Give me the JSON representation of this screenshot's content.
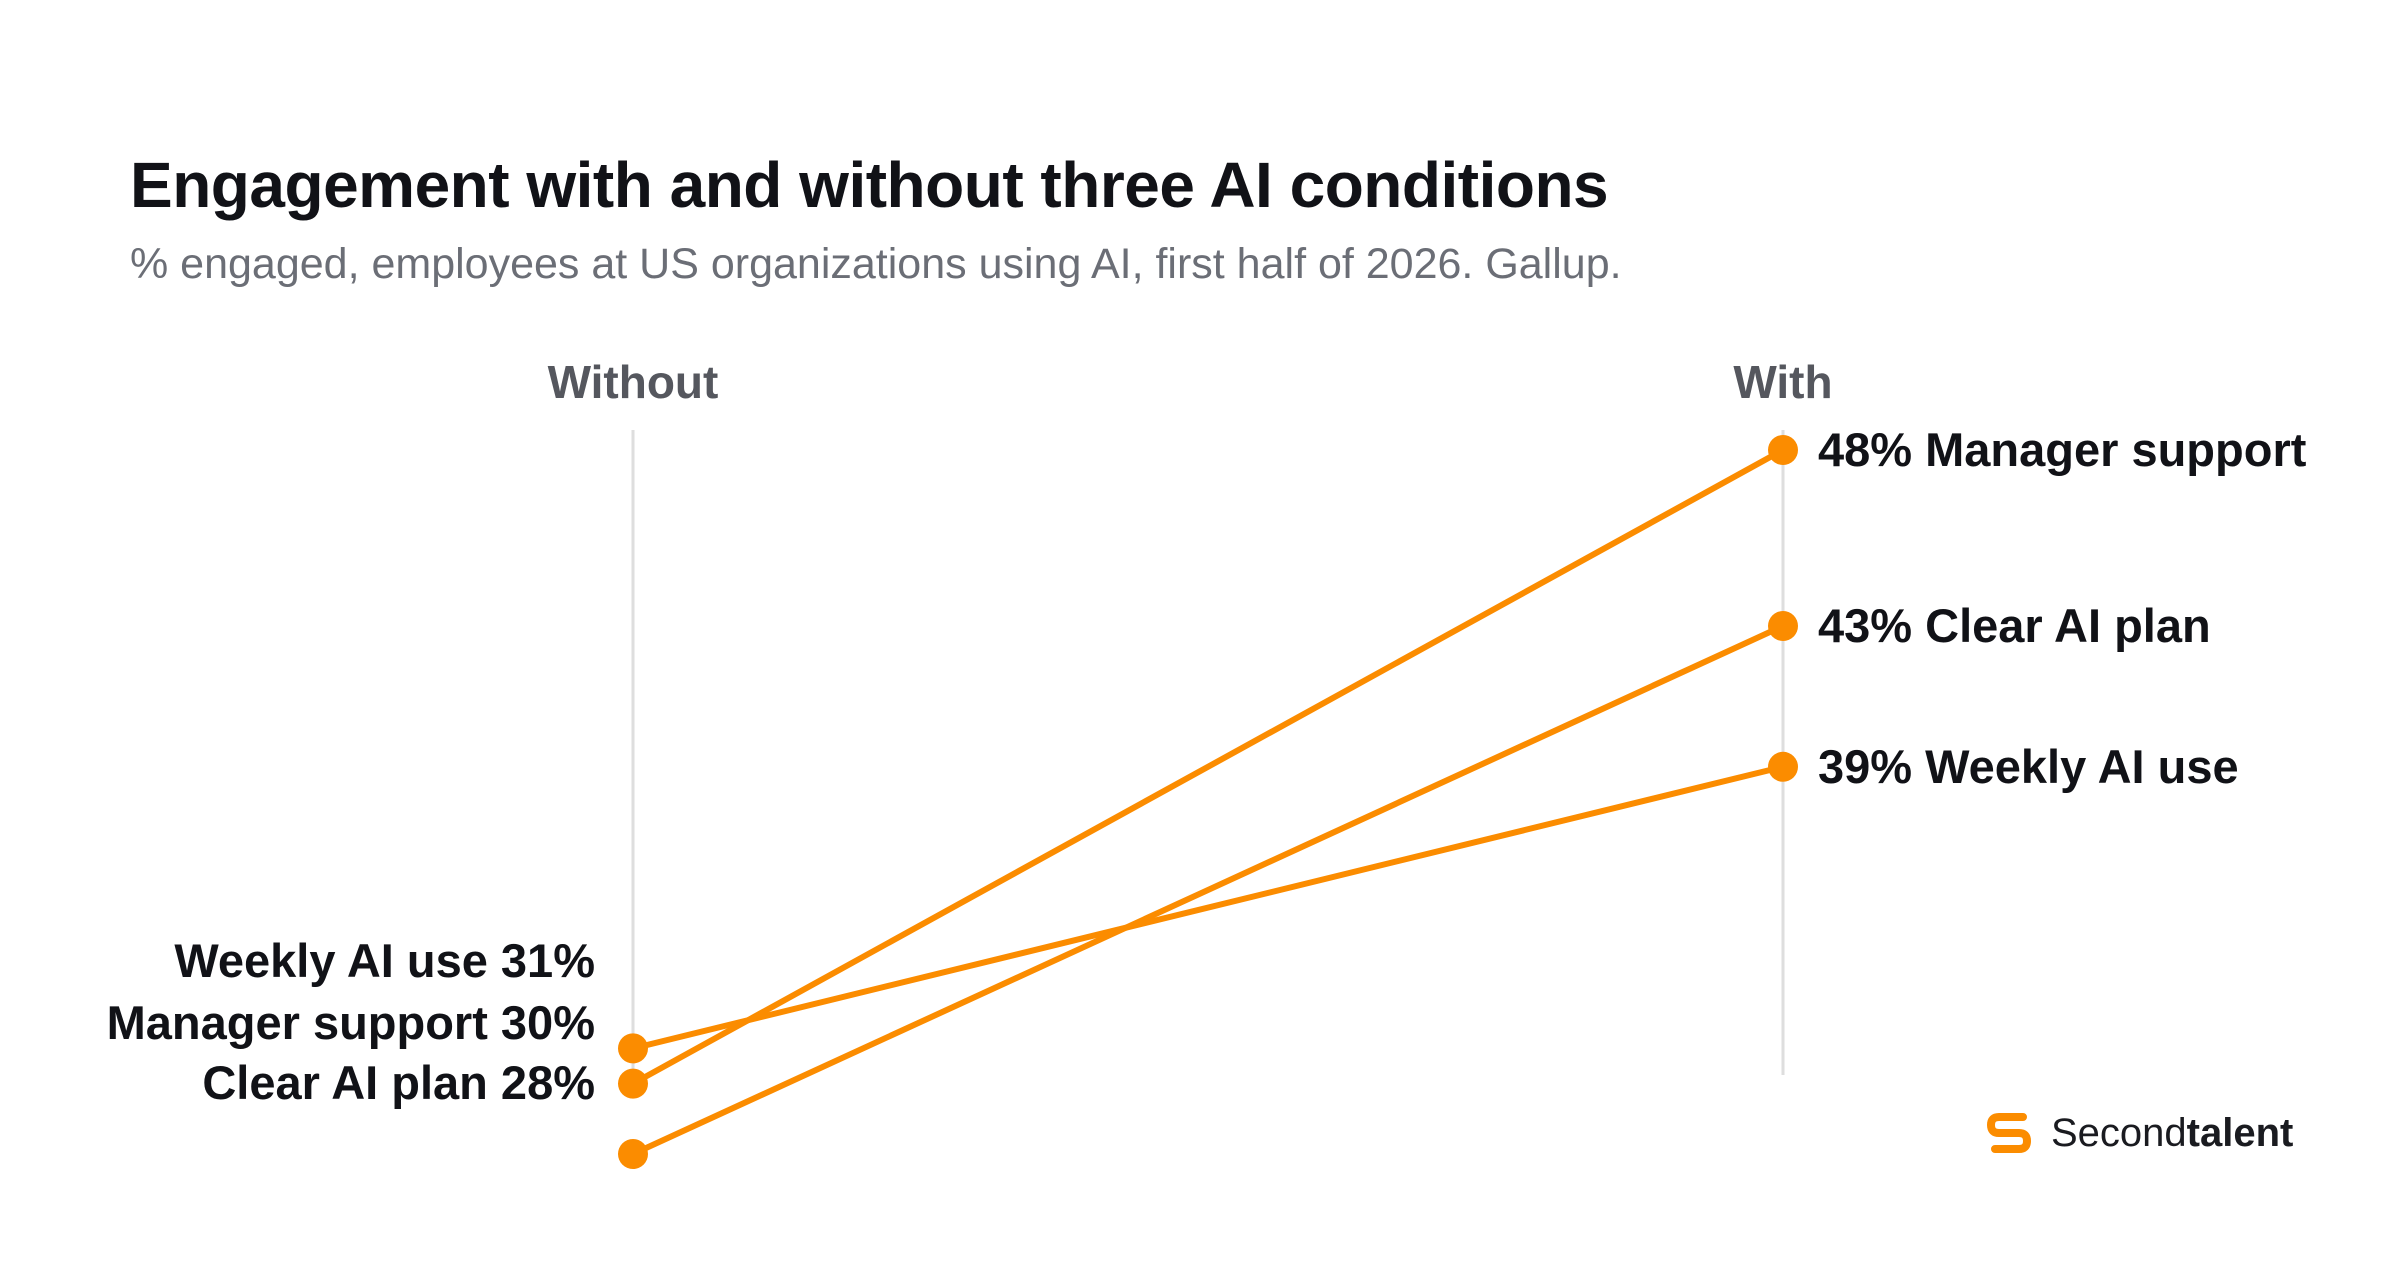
{
  "title": "Engagement with and without three AI conditions",
  "subtitle": "% engaged, employees at US organizations using AI, first half of 2026. Gallup.",
  "brand": {
    "regular": "Second",
    "bold": "talent"
  },
  "colors": {
    "accent": "#fb8c00",
    "axis": "#dedede",
    "text": "#111217",
    "muted": "#55575e"
  },
  "chart_data": {
    "type": "line",
    "categories": [
      "Without",
      "With"
    ],
    "series": [
      {
        "name": "Manager support",
        "values": [
          30,
          48
        ]
      },
      {
        "name": "Clear AI plan",
        "values": [
          28,
          43
        ]
      },
      {
        "name": "Weekly AI use",
        "values": [
          31,
          39
        ]
      }
    ],
    "unit": "%",
    "ylim": [
      26,
      49
    ],
    "grid": false,
    "legend": "none"
  }
}
